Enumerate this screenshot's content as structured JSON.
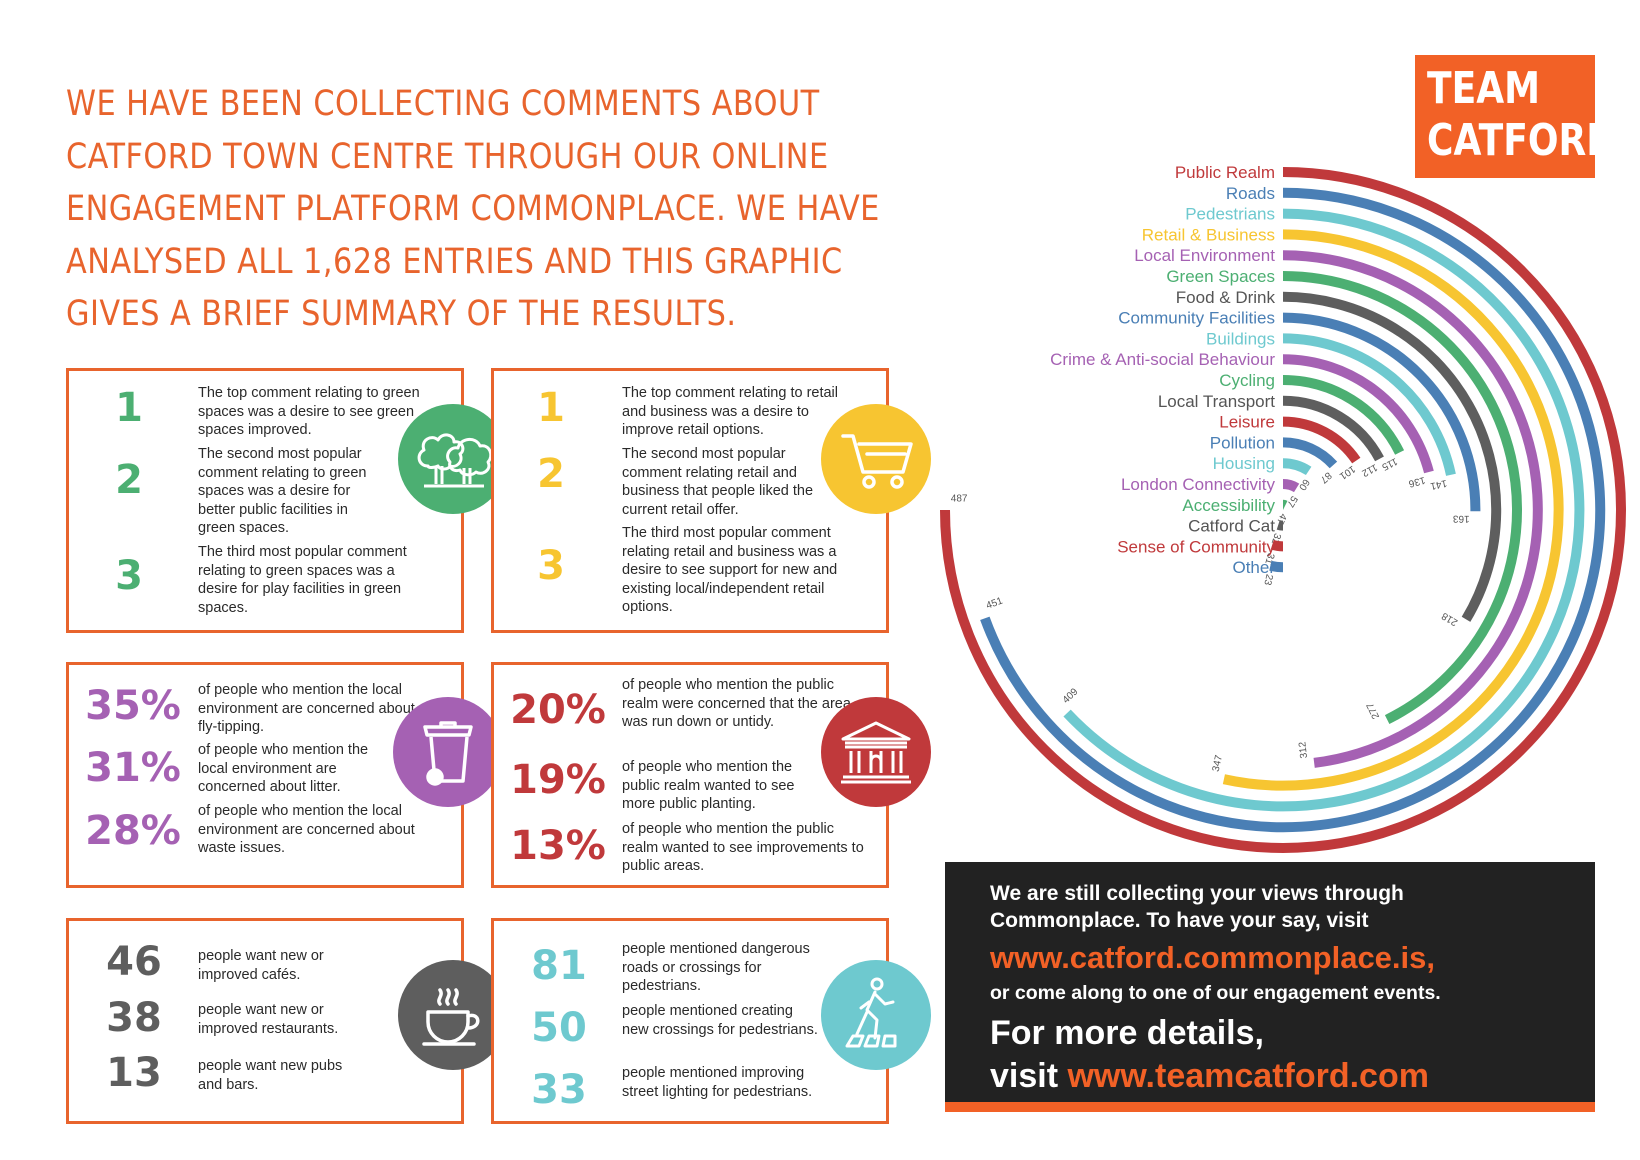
{
  "headline": [
    "WE HAVE BEEN COLLECTING COMMENTS ABOUT",
    "CATFORD TOWN CENTRE THROUGH OUR ONLINE",
    "ENGAGEMENT PLATFORM COMMONPLACE. WE HAVE",
    "ANALYSED ALL 1,628 ENTRIES AND THIS GRAPHIC",
    "GIVES A BRIEF SUMMARY OF THE RESULTS."
  ],
  "logo": [
    "TEAM",
    "CATFORD"
  ],
  "colors": {
    "orange": "#e8642d",
    "green": "#4caf72",
    "yellow": "#f7c531",
    "purple": "#a561b3",
    "red": "#c0393b",
    "grey": "#5e5e5e",
    "teal": "#6ec9cf",
    "blue": "#4a7fb5"
  },
  "green_box": {
    "icon": "tree-icon",
    "items": [
      {
        "rank": "1",
        "text": "The top comment relating to green spaces was a desire to see green spaces improved."
      },
      {
        "rank": "2",
        "text": "The second most popular comment relating to green spaces was a desire for better public facilities in green spaces."
      },
      {
        "rank": "3",
        "text": "The third most popular comment relating to green spaces was a desire for play facilities in green spaces."
      }
    ]
  },
  "retail_box": {
    "icon": "shopping-cart-icon",
    "items": [
      {
        "rank": "1",
        "text": "The top comment relating to retail and business was a desire to improve retail options."
      },
      {
        "rank": "2",
        "text": "The second most popular comment relating retail and business that people liked the current retail offer."
      },
      {
        "rank": "3",
        "text": "The third most popular comment relating retail and business was a desire to see support for new and existing local/independent retail options."
      }
    ]
  },
  "environment_box": {
    "icon": "bin-icon",
    "items": [
      {
        "value": "35%",
        "text": "of people who mention the local environment are concerned about fly-tipping."
      },
      {
        "value": "31%",
        "text": "of people who mention the local environment are concerned about litter."
      },
      {
        "value": "28%",
        "text": "of people who mention the local environment are concerned about waste issues."
      }
    ]
  },
  "realm_box": {
    "icon": "building-icon",
    "items": [
      {
        "value": "20%",
        "text": "of people who mention the public realm were concerned that the area was run down or untidy."
      },
      {
        "value": "19%",
        "text": "of people who mention the public realm wanted to see more public planting."
      },
      {
        "value": "13%",
        "text": "of people who mention the public realm wanted to see improvements to public areas."
      }
    ]
  },
  "food_box": {
    "icon": "coffee-cup-icon",
    "items": [
      {
        "value": "46",
        "text": "people want new or improved cafés."
      },
      {
        "value": "38",
        "text": "people want new or improved restaurants."
      },
      {
        "value": "13",
        "text": "people want new pubs and bars."
      }
    ]
  },
  "pedestrian_box": {
    "icon": "pedestrian-icon",
    "items": [
      {
        "value": "81",
        "text": "people mentioned dangerous roads or crossings for pedestrians."
      },
      {
        "value": "50",
        "text": "people mentioned creating new crossings for pedestrians."
      },
      {
        "value": "33",
        "text": "people mentioned improving street lighting for pedestrians."
      }
    ]
  },
  "chart_data": {
    "type": "radial-bar",
    "max": 487,
    "categories": [
      {
        "name": "Public Realm",
        "value": 487,
        "color": "#c0393b"
      },
      {
        "name": "Roads",
        "value": 451,
        "color": "#4a7fb5"
      },
      {
        "name": "Pedestrians",
        "value": 409,
        "color": "#6ec9cf"
      },
      {
        "name": "Retail & Business",
        "value": 347,
        "color": "#f7c531"
      },
      {
        "name": "Local Environment",
        "value": 312,
        "color": "#a561b3"
      },
      {
        "name": "Green Spaces",
        "value": 277,
        "color": "#4caf72"
      },
      {
        "name": "Food & Drink",
        "value": 218,
        "color": "#5e5e5e"
      },
      {
        "name": "Community Facilities",
        "value": 163,
        "color": "#4a7fb5"
      },
      {
        "name": "Buildings",
        "value": 141,
        "color": "#6ec9cf"
      },
      {
        "name": "Crime & Anti-social Behaviour",
        "value": 136,
        "color": "#a561b3"
      },
      {
        "name": "Cycling",
        "value": 115,
        "color": "#4caf72"
      },
      {
        "name": "Local Transport",
        "value": 112,
        "color": "#5e5e5e"
      },
      {
        "name": "Leisure",
        "value": 101,
        "color": "#c0393b"
      },
      {
        "name": "Pollution",
        "value": 87,
        "color": "#4a7fb5"
      },
      {
        "name": "Housing",
        "value": 60,
        "color": "#6ec9cf"
      },
      {
        "name": "London Connectivity",
        "value": 57,
        "color": "#a561b3"
      },
      {
        "name": "Accessibility",
        "value": 47,
        "color": "#4caf72"
      },
      {
        "name": "Catford Cat",
        "value": 32,
        "color": "#5e5e5e"
      },
      {
        "name": "Sense of Community",
        "value": 31,
        "color": "#c0393b"
      },
      {
        "name": "Other",
        "value": 23,
        "color": "#4a7fb5"
      }
    ]
  },
  "cta": {
    "line1": "We are still collecting your views through Commonplace. To have your say, visit",
    "url1": "www.catford.commonplace.is,",
    "line3": "or come along to one of our engagement events.",
    "line4a": "For more details,",
    "line4b": "visit ",
    "url2": "www.teamcatford.com"
  }
}
